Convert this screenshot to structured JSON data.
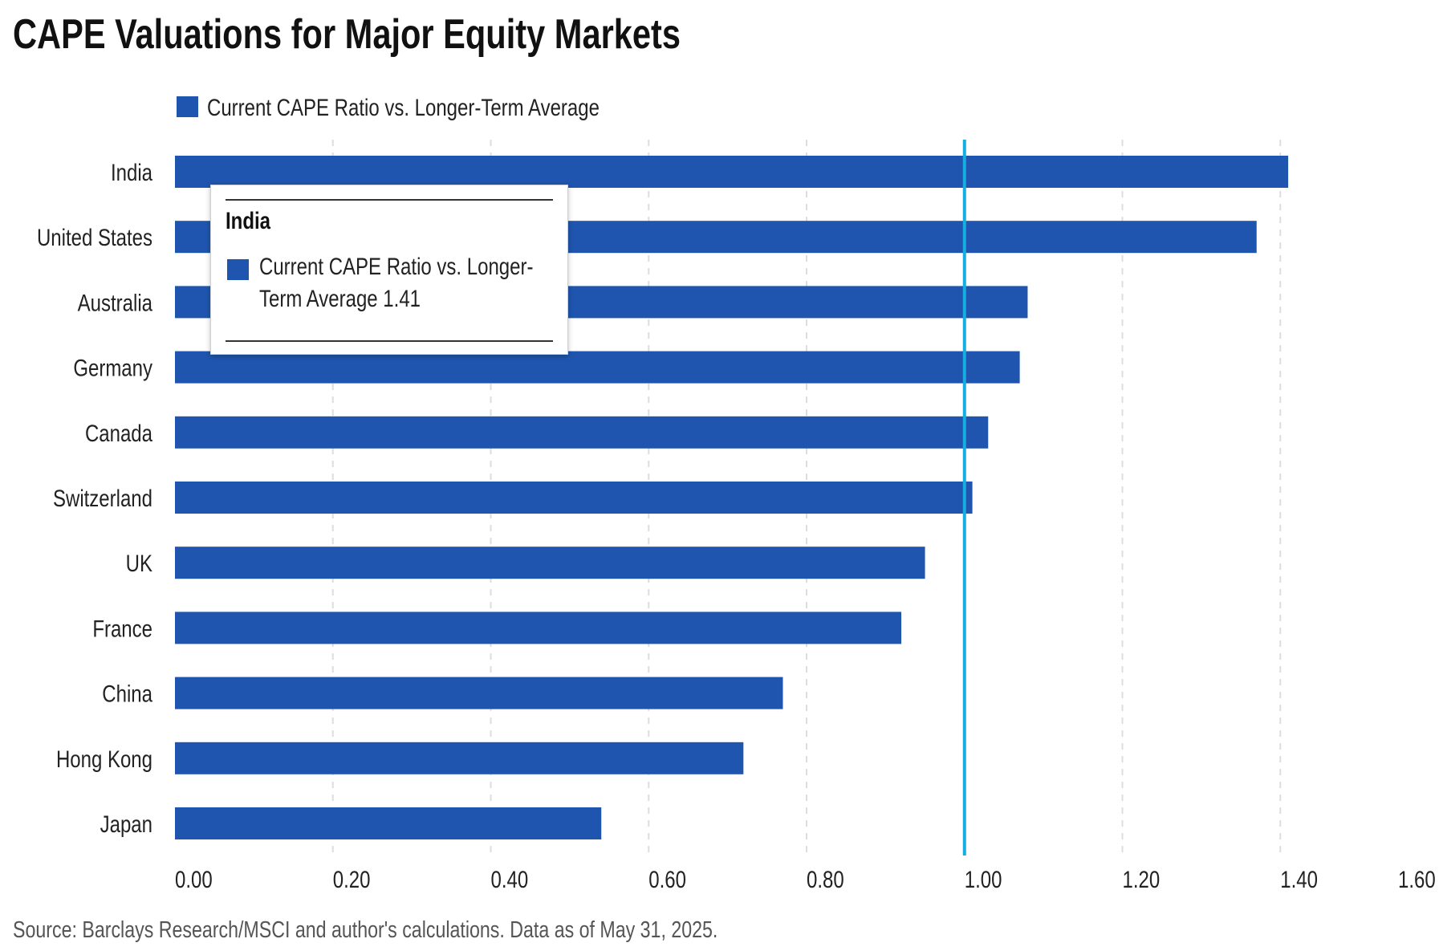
{
  "chart_data": {
    "type": "bar",
    "orientation": "horizontal",
    "title": "CAPE Valuations for Major Equity Markets",
    "source": "Source: Barclays Research/MSCI and author's calculations. Data as of May 31, 2025.",
    "categories": [
      "India",
      "United States",
      "Australia",
      "Germany",
      "Canada",
      "Switzerland",
      "UK",
      "France",
      "China",
      "Hong Kong",
      "Japan"
    ],
    "series": [
      {
        "name": "Current CAPE Ratio vs. Longer-Term Average",
        "values": [
          1.41,
          1.37,
          1.08,
          1.07,
          1.03,
          1.01,
          0.95,
          0.92,
          0.77,
          0.72,
          0.54
        ]
      }
    ],
    "xlim": [
      0,
      1.6
    ],
    "xticks": [
      "0.00",
      "0.20",
      "0.40",
      "0.60",
      "0.80",
      "1.00",
      "1.20",
      "1.40",
      "1.60"
    ],
    "reference_line": 1.0,
    "grid": "vertical dashed",
    "legend": "top-left",
    "colors": {
      "bar": "#1f55ae",
      "reference": "#16aee0",
      "grid": "#dddddd"
    }
  },
  "tooltip": {
    "title": "India",
    "line1": "Current CAPE Ratio vs. Longer-",
    "line2": "Term Average 1.41"
  }
}
